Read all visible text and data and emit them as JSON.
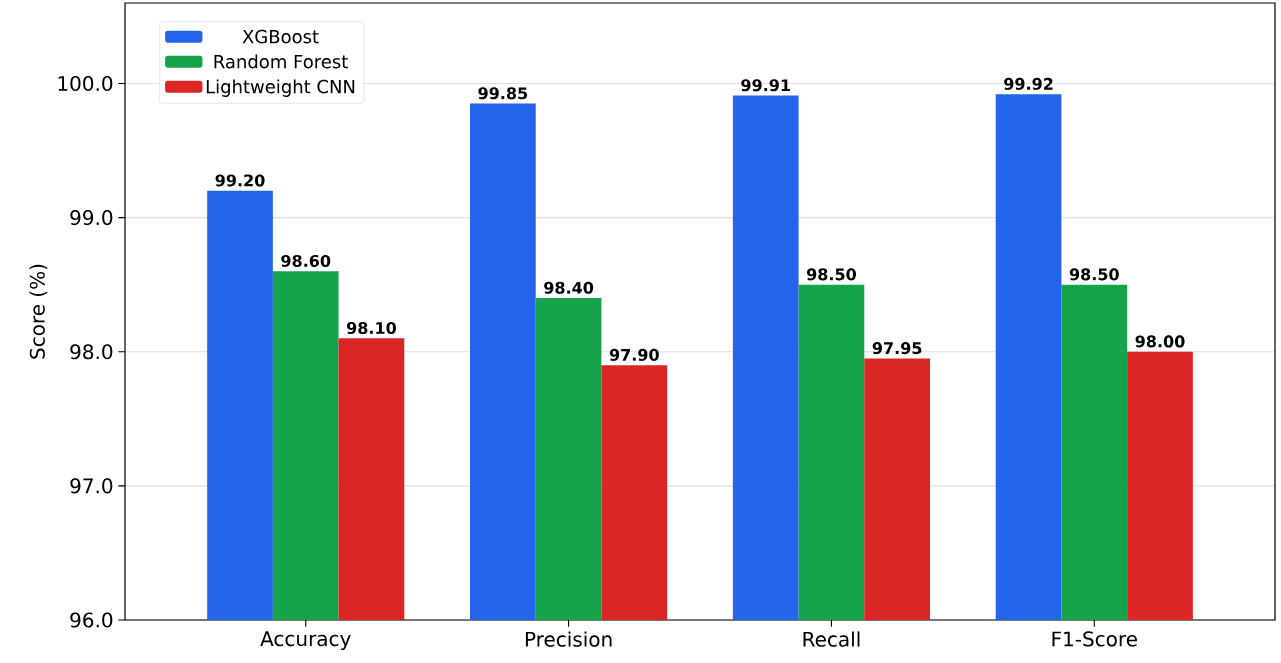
{
  "chart_data": {
    "type": "bar",
    "ylabel": "Score (%)",
    "categories": [
      "Accuracy",
      "Precision",
      "Recall",
      "F1-Score"
    ],
    "series": [
      {
        "name": "XGBoost",
        "color": "#2563eb",
        "values": [
          99.2,
          99.85,
          99.91,
          99.92
        ],
        "value_labels": [
          "99.20",
          "99.85",
          "99.91",
          "99.92"
        ]
      },
      {
        "name": "Random Forest",
        "color": "#16a34a",
        "values": [
          98.6,
          98.4,
          98.5,
          98.5
        ],
        "value_labels": [
          "98.60",
          "98.40",
          "98.50",
          "98.50"
        ]
      },
      {
        "name": "Lightweight CNN",
        "color": "#dc2626",
        "values": [
          98.1,
          97.9,
          97.95,
          98.0
        ],
        "value_labels": [
          "98.10",
          "97.90",
          "97.95",
          "98.00"
        ]
      }
    ],
    "ylim": [
      96,
      100.6
    ],
    "yticks": [
      {
        "value": 96,
        "label": "96.0"
      },
      {
        "value": 97,
        "label": "97.0"
      },
      {
        "value": 98,
        "label": "98.0"
      },
      {
        "value": 99,
        "label": "99.0"
      },
      {
        "value": 100,
        "label": "100.0"
      }
    ],
    "grid": "y",
    "legend": "top left"
  }
}
